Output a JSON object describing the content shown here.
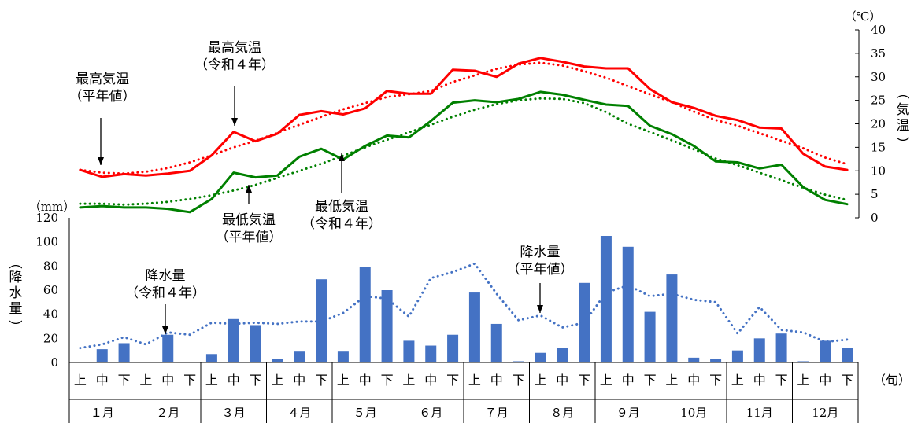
{
  "chart_data": {
    "type": "bar",
    "categories_dekad": [
      "上",
      "中",
      "下"
    ],
    "months": [
      "１月",
      "２月",
      "３月",
      "４月",
      "５月",
      "６月",
      "７月",
      "８月",
      "９月",
      "10月",
      "11月",
      "12月"
    ],
    "dekad_unit": "（旬）",
    "temperature_axis": {
      "unit": "（℃）",
      "label": "気温",
      "ylim": [
        0,
        40
      ],
      "ticks": [
        0,
        5,
        10,
        15,
        20,
        25,
        30,
        35,
        40
      ]
    },
    "precipitation_axis": {
      "unit": "（mm）",
      "label": "降水量",
      "ylim": [
        0,
        120
      ],
      "ticks": [
        0,
        20,
        40,
        60,
        80,
        100,
        120
      ]
    },
    "series": [
      {
        "name": "最高気温（令和４年）",
        "kind": "line",
        "style": "solid",
        "color": "#ff0000",
        "values": [
          10.2,
          8.7,
          9.3,
          9.0,
          9.4,
          10.0,
          13.3,
          18.3,
          16.3,
          17.9,
          21.9,
          22.7,
          22.0,
          23.3,
          27.0,
          26.4,
          26.4,
          31.5,
          31.3,
          30.0,
          32.8,
          34.0,
          33.2,
          32.2,
          31.8,
          31.8,
          27.4,
          24.6,
          23.4,
          21.7,
          20.8,
          19.2,
          19.0,
          13.6,
          10.9,
          10.2
        ]
      },
      {
        "name": "最高気温（平年値）",
        "kind": "line",
        "style": "dotted",
        "color": "#ff0000",
        "values": [
          10.2,
          9.6,
          9.4,
          9.8,
          10.6,
          11.8,
          13.3,
          15.0,
          16.4,
          18.1,
          19.8,
          21.5,
          23.1,
          24.4,
          25.7,
          26.3,
          27.0,
          28.9,
          30.3,
          31.7,
          32.6,
          33.0,
          32.4,
          31.2,
          29.8,
          28.0,
          26.3,
          24.6,
          22.6,
          20.8,
          19.6,
          18.0,
          16.4,
          14.8,
          12.8,
          11.4
        ]
      },
      {
        "name": "最低気温（令和４年）",
        "kind": "line",
        "style": "solid",
        "color": "#008000",
        "values": [
          2.2,
          2.5,
          2.2,
          2.2,
          1.9,
          1.2,
          4.0,
          9.6,
          8.6,
          9.0,
          13.0,
          14.7,
          12.4,
          15.3,
          17.5,
          17.1,
          20.6,
          24.5,
          25.0,
          24.6,
          25.3,
          26.8,
          26.2,
          25.1,
          24.1,
          23.8,
          19.6,
          17.8,
          15.3,
          12.0,
          11.8,
          10.5,
          11.3,
          6.5,
          3.8,
          2.9
        ]
      },
      {
        "name": "最低気温（平年値）",
        "kind": "line",
        "style": "dotted",
        "color": "#008000",
        "values": [
          3.0,
          3.0,
          2.8,
          3.0,
          3.4,
          4.0,
          4.8,
          5.8,
          7.0,
          8.5,
          10.0,
          11.5,
          13.2,
          15.0,
          16.6,
          18.2,
          19.8,
          21.5,
          23.0,
          24.2,
          25.0,
          25.4,
          25.3,
          24.4,
          22.5,
          20.0,
          18.3,
          16.5,
          14.6,
          12.6,
          11.2,
          9.6,
          8.0,
          6.4,
          4.9,
          3.8
        ]
      },
      {
        "name": "降水量（令和４年）",
        "kind": "bar",
        "color": "#4472c4",
        "values": [
          0,
          11,
          16,
          0,
          23,
          0,
          7,
          36,
          31,
          3,
          9,
          69,
          9,
          79,
          60,
          18,
          14,
          23,
          58,
          32,
          1,
          8,
          12,
          66,
          105,
          96,
          42,
          73,
          4,
          3,
          10,
          20,
          24,
          1,
          18,
          12
        ]
      },
      {
        "name": "降水量（平年値）",
        "kind": "line",
        "style": "dotted",
        "color": "#4472c4",
        "values": [
          12,
          15,
          21,
          15,
          25,
          23,
          33,
          32,
          33,
          32,
          34,
          34,
          41,
          55,
          53,
          38,
          70,
          75,
          82,
          57,
          35,
          39,
          29,
          33,
          58,
          64,
          55,
          57,
          52,
          50,
          24,
          46,
          27,
          25,
          17,
          19
        ]
      }
    ],
    "annotations": [
      {
        "series": 0,
        "label_lines": [
          "最高気温",
          "（令和４年）"
        ]
      },
      {
        "series": 1,
        "label_lines": [
          "最高気温",
          "（平年値）"
        ]
      },
      {
        "series": 2,
        "label_lines": [
          "最低気温",
          "（令和４年）"
        ]
      },
      {
        "series": 3,
        "label_lines": [
          "最低気温",
          "（平年値）"
        ]
      },
      {
        "series": 4,
        "label_lines": [
          "降水量",
          "（令和４年）"
        ]
      },
      {
        "series": 5,
        "label_lines": [
          "降水量",
          "（平年値）"
        ]
      }
    ]
  }
}
